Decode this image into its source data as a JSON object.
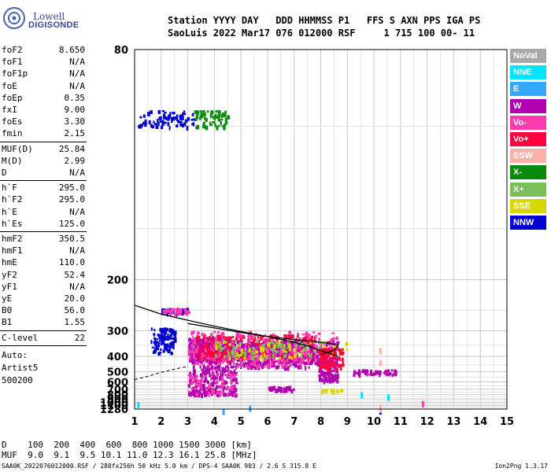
{
  "logo": {
    "top_text": "Lowell",
    "bottom_text": "DIGISONDE"
  },
  "header": {
    "line1": "Station YYYY DAY   DDD HHMMSS P1   FFS S AXN PPS IGA PS",
    "line2": "SaoLuis 2022 Mar17 076 012000 RSF     1 715 100 00- 11"
  },
  "params_group1": [
    {
      "label": "foF2",
      "value": "8.650"
    },
    {
      "label": "foF1",
      "value": "N/A"
    },
    {
      "label": "foF1p",
      "value": "N/A"
    },
    {
      "label": "foE",
      "value": "N/A"
    },
    {
      "label": "foEp",
      "value": "0.35"
    },
    {
      "label": "fxI",
      "value": "9.00"
    },
    {
      "label": "foEs",
      "value": "3.30"
    },
    {
      "label": "fmin",
      "value": "2.15"
    }
  ],
  "params_group2": [
    {
      "label": "MUF(D)",
      "value": "25.84"
    },
    {
      "label": "M(D)",
      "value": "2.99"
    },
    {
      "label": "D",
      "value": "N/A"
    }
  ],
  "params_group3": [
    {
      "label": "h`F",
      "value": "295.0"
    },
    {
      "label": "h`F2",
      "value": "295.0"
    },
    {
      "label": "h`E",
      "value": "N/A"
    },
    {
      "label": "h`Es",
      "value": "125.0"
    }
  ],
  "params_group4": [
    {
      "label": "hmF2",
      "value": "350.5"
    },
    {
      "label": "hmF1",
      "value": "N/A"
    },
    {
      "label": "hmE",
      "value": "110.0"
    },
    {
      "label": "yF2",
      "value": "52.4"
    },
    {
      "label": "yF1",
      "value": "N/A"
    },
    {
      "label": "yE",
      "value": "20.0"
    },
    {
      "label": "B0",
      "value": "56.0"
    },
    {
      "label": "B1",
      "value": "1.55"
    }
  ],
  "params_group5": [
    {
      "label": "C-level",
      "value": "22"
    }
  ],
  "auto_lines": [
    "Auto:",
    "Artist5",
    "500200"
  ],
  "legend": [
    {
      "label": "NoVal",
      "color": "#a8a8a8",
      "text_color": "#ffffff"
    },
    {
      "label": "NNE",
      "color": "#00e5ff",
      "text_color": "#ffffff"
    },
    {
      "label": "E",
      "color": "#34a8ff",
      "text_color": "#ffffff"
    },
    {
      "label": "W",
      "color": "#b000b0",
      "text_color": "#ffffff"
    },
    {
      "label": "Vo-",
      "color": "#ff3ab0",
      "text_color": "#ffffff"
    },
    {
      "label": "Vo+",
      "color": "#ff0040",
      "text_color": "#ffffff"
    },
    {
      "label": "SSW",
      "color": "#ffb0a8",
      "text_color": "#ffffff"
    },
    {
      "label": "X-",
      "color": "#0a8a0a",
      "text_color": "#ffffff"
    },
    {
      "label": "X+",
      "color": "#7ac05a",
      "text_color": "#ffffff"
    },
    {
      "label": "SSE",
      "color": "#d8d800",
      "text_color": "#ffffff"
    },
    {
      "label": "NNW",
      "color": "#0000d0",
      "text_color": "#ffffff"
    }
  ],
  "dmuf": {
    "line1": "D    100  200  400  600  800 1000 1500 3000 [km]",
    "line2": "MUF  9.0  9.1  9.5 10.1 11.0 12.3 16.1 25.8 [MHz]"
  },
  "footer_left": "SAA0K_2022076012000.RSF / 280fx256h 50 kHz 5.0 km / DPS-4 SAA0K 903 / 2.6 S 315.8 E",
  "footer_right": "Ion2Png 1.3.17",
  "chart_data": {
    "type": "scatter",
    "title": "",
    "xlabel": "",
    "ylabel": "",
    "x_ticks": [
      1,
      2,
      3,
      4,
      5,
      6,
      7,
      8,
      9,
      10,
      11,
      12,
      13,
      14,
      15
    ],
    "y_ticks": [
      80,
      200,
      300,
      400,
      500,
      600,
      700,
      800,
      900,
      1000,
      1100,
      1280
    ],
    "xlim": [
      1,
      15
    ],
    "ylim": [
      80,
      1280
    ],
    "grid": true,
    "y_scale": "reciprocal",
    "trace_profile": {
      "x": [
        1.0,
        2.0,
        3.0,
        4.0,
        5.0,
        6.0,
        7.0,
        7.5,
        8.0,
        8.5,
        8.65
      ],
      "y": [
        240,
        258,
        272,
        287,
        302,
        318,
        338,
        352,
        372,
        392,
        400
      ]
    },
    "virtual_height_curve": {
      "x": [
        3.0,
        4.0,
        5.0,
        6.0,
        7.0,
        8.0,
        8.5,
        8.65,
        8.5,
        8.0
      ],
      "y": [
        280,
        292,
        305,
        318,
        328,
        338,
        345,
        350,
        370,
        390
      ]
    },
    "upper_dashed_curve": {
      "x": [
        1.0,
        1.5,
        2.0,
        2.5,
        3.0
      ],
      "y": [
        575,
        540,
        505,
        480,
        460
      ]
    },
    "echo_clusters": [
      {
        "series": "W",
        "x_range": [
          3.0,
          4.6
        ],
        "y_range": [
          320,
          430
        ],
        "density": 260
      },
      {
        "series": "Vo+",
        "x_range": [
          3.3,
          7.8
        ],
        "y_range": [
          310,
          420
        ],
        "density": 420
      },
      {
        "series": "W",
        "x_range": [
          4.6,
          8.6
        ],
        "y_range": [
          330,
          460
        ],
        "density": 360
      },
      {
        "series": "Vo-",
        "x_range": [
          3.0,
          8.7
        ],
        "y_range": [
          300,
          460
        ],
        "density": 260
      },
      {
        "series": "X+",
        "x_range": [
          4.0,
          8.0
        ],
        "y_range": [
          330,
          400
        ],
        "density": 80
      },
      {
        "series": "SSE",
        "x_range": [
          4.0,
          9.0
        ],
        "y_range": [
          330,
          410
        ],
        "density": 60
      },
      {
        "series": "W",
        "x_range": [
          3.0,
          4.8
        ],
        "y_range": [
          450,
          780
        ],
        "density": 220
      },
      {
        "series": "Vo-",
        "x_range": [
          3.0,
          4.8
        ],
        "y_range": [
          500,
          780
        ],
        "density": 60
      },
      {
        "series": "NNW",
        "x_range": [
          1.6,
          2.5
        ],
        "y_range": [
          290,
          380
        ],
        "density": 110
      },
      {
        "series": "NNW",
        "x_range": [
          1.1,
          3.3
        ],
        "y_range": [
          95,
          100
        ],
        "density": 80
      },
      {
        "series": "X-",
        "x_range": [
          3.2,
          4.5
        ],
        "y_range": [
          95,
          100
        ],
        "density": 60
      },
      {
        "series": "W",
        "x_range": [
          7.9,
          8.6
        ],
        "y_range": [
          400,
          580
        ],
        "density": 120
      },
      {
        "series": "Vo+",
        "x_range": [
          7.9,
          8.8
        ],
        "y_range": [
          360,
          470
        ],
        "density": 100
      },
      {
        "series": "W",
        "x_range": [
          9.2,
          10.8
        ],
        "y_range": [
          480,
          520
        ],
        "density": 40
      },
      {
        "series": "SSE",
        "x_range": [
          7.8,
          8.8
        ],
        "y_range": [
          690,
          720
        ],
        "density": 20
      },
      {
        "series": "W",
        "x_range": [
          6.0,
          7.0
        ],
        "y_range": [
          650,
          720
        ],
        "density": 30
      },
      {
        "series": "NNW",
        "x_range": [
          2.0,
          3.0
        ],
        "y_range": [
          245,
          255
        ],
        "density": 40
      },
      {
        "series": "Vo-",
        "x_range": [
          2.0,
          3.0
        ],
        "y_range": [
          245,
          255
        ],
        "density": 30
      }
    ],
    "isolated_echoes": [
      {
        "series": "NNW",
        "x": 10.2,
        "y": 1240
      },
      {
        "series": "SSW",
        "x": 10.2,
        "y": 1160
      },
      {
        "series": "SSW",
        "x": 10.2,
        "y": 1120
      },
      {
        "series": "SSW",
        "x": 10.2,
        "y": 420
      },
      {
        "series": "SSW",
        "x": 10.2,
        "y": 360
      },
      {
        "series": "Vo-",
        "x": 11.8,
        "y": 960
      },
      {
        "series": "E",
        "x": 5.3,
        "y": 1120
      },
      {
        "series": "E",
        "x": 4.3,
        "y": 1265
      },
      {
        "series": "NNE",
        "x": 1.1,
        "y": 990
      },
      {
        "series": "NNE",
        "x": 10.5,
        "y": 795
      },
      {
        "series": "NNE",
        "x": 9.5,
        "y": 750
      }
    ]
  }
}
